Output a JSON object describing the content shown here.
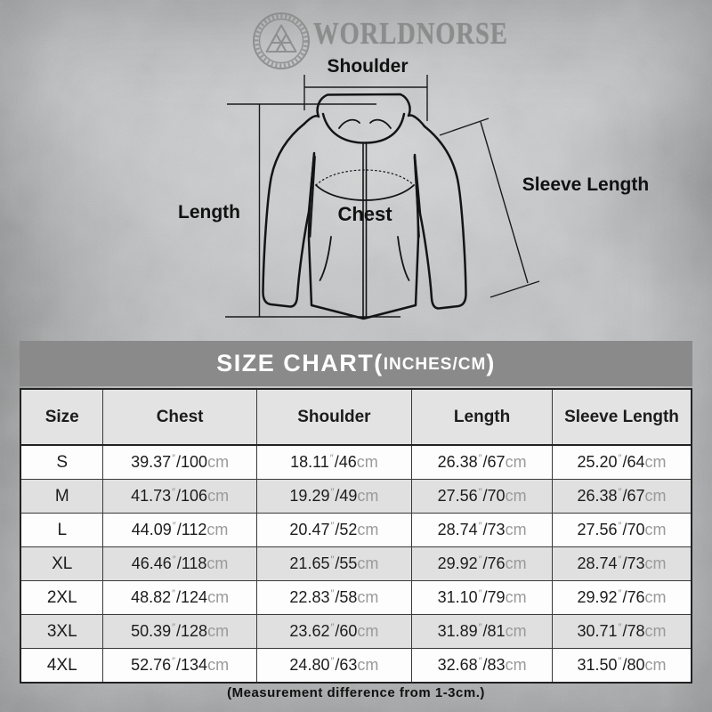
{
  "brand": {
    "name": "WORLDNORSE",
    "logo": "valknut-circle-emblem"
  },
  "diagram": {
    "labels": {
      "shoulder": "Shoulder",
      "length": "Length",
      "chest": "Chest",
      "sleeve_length": "Sleeve Length"
    }
  },
  "size_chart": {
    "title_main": "SIZE CHART(",
    "title_sub": "INCHES/CM",
    "title_close": ")",
    "columns": [
      "Size",
      "Chest",
      "Shoulder",
      "Length",
      "Sleeve Length"
    ],
    "inch_mark": "″",
    "cm_unit": "cm",
    "rows": [
      {
        "size": "S",
        "chest": {
          "in": "39.37",
          "cm": "100"
        },
        "shoulder": {
          "in": "18.11",
          "cm": "46"
        },
        "length": {
          "in": "26.38",
          "cm": "67"
        },
        "sleeve": {
          "in": "25.20",
          "cm": "64"
        }
      },
      {
        "size": "M",
        "chest": {
          "in": "41.73",
          "cm": "106"
        },
        "shoulder": {
          "in": "19.29",
          "cm": "49"
        },
        "length": {
          "in": "27.56",
          "cm": "70"
        },
        "sleeve": {
          "in": "26.38",
          "cm": "67"
        }
      },
      {
        "size": "L",
        "chest": {
          "in": "44.09",
          "cm": "112"
        },
        "shoulder": {
          "in": "20.47",
          "cm": "52"
        },
        "length": {
          "in": "28.74",
          "cm": "73"
        },
        "sleeve": {
          "in": "27.56",
          "cm": "70"
        }
      },
      {
        "size": "XL",
        "chest": {
          "in": "46.46",
          "cm": "118"
        },
        "shoulder": {
          "in": "21.65",
          "cm": "55"
        },
        "length": {
          "in": "29.92",
          "cm": "76"
        },
        "sleeve": {
          "in": "28.74",
          "cm": "73"
        }
      },
      {
        "size": "2XL",
        "chest": {
          "in": "48.82",
          "cm": "124"
        },
        "shoulder": {
          "in": "22.83",
          "cm": "58"
        },
        "length": {
          "in": "31.10",
          "cm": "79"
        },
        "sleeve": {
          "in": "29.92",
          "cm": "76"
        }
      },
      {
        "size": "3XL",
        "chest": {
          "in": "50.39",
          "cm": "128"
        },
        "shoulder": {
          "in": "23.62",
          "cm": "60"
        },
        "length": {
          "in": "31.89",
          "cm": "81"
        },
        "sleeve": {
          "in": "30.71",
          "cm": "78"
        }
      },
      {
        "size": "4XL",
        "chest": {
          "in": "52.76",
          "cm": "134"
        },
        "shoulder": {
          "in": "24.80",
          "cm": "63"
        },
        "length": {
          "in": "32.68",
          "cm": "83"
        },
        "sleeve": {
          "in": "31.50",
          "cm": "80"
        }
      }
    ],
    "footnote": "(Measurement difference from 1-3cm.)"
  },
  "colors": {
    "page_bg": "#c3c6c7",
    "band_bg": "#8a8a8a",
    "band_text": "#ffffff",
    "header_row_bg": "#e3e3e3",
    "row_bg": "#fdfdfd",
    "row_alt_bg": "#e0e0e0",
    "border": "#3a3a3a",
    "text": "#1c1c1c",
    "unit_text": "#9a9a9a",
    "brand_text": "#8c8c8c",
    "line_art": "#1b1b1b"
  }
}
